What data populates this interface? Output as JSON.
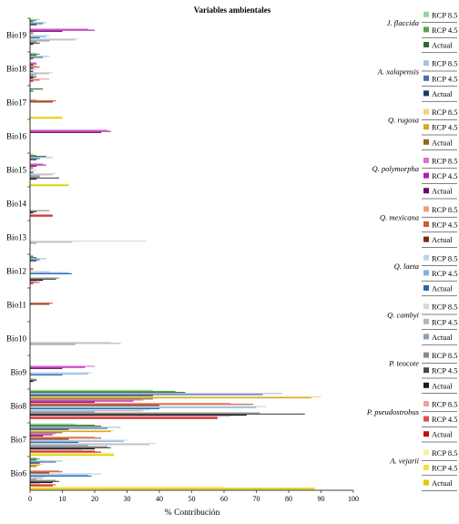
{
  "chart_data": {
    "type": "bar",
    "orientation": "horizontal",
    "title": "Variables ambientales",
    "xlabel": "% Contribución",
    "ylabel": "",
    "xlim": [
      0,
      100
    ],
    "xticks": [
      0,
      10,
      20,
      30,
      40,
      50,
      60,
      70,
      80,
      90,
      100
    ],
    "categories": [
      "Bio19",
      "Bio18",
      "Bio17",
      "Bio16",
      "Bio15",
      "Bio14",
      "Bio13",
      "Bio12",
      "Bio11",
      "Bio10",
      "Bio9",
      "Bio8",
      "Bio7",
      "Bio6"
    ],
    "grid": false,
    "legend_position": "right",
    "scenario_labels": [
      "RCP 8.5",
      "RCP 4.5",
      "Actual"
    ],
    "series": [
      {
        "species": "J. flaccida",
        "scenario": "RCP 8.5",
        "color": "#9ad39a",
        "values": [
          3,
          2,
          0,
          0,
          1,
          0,
          0,
          1,
          0,
          0,
          0,
          38,
          14,
          2
        ]
      },
      {
        "species": "J. flaccida",
        "scenario": "RCP 4.5",
        "color": "#5f9e4f",
        "values": [
          2,
          3,
          0,
          0,
          2,
          0,
          0,
          1,
          0,
          0,
          0,
          45,
          20,
          3
        ]
      },
      {
        "species": "J. flaccida",
        "scenario": "Actual",
        "color": "#2e6b2e",
        "values": [
          1,
          2,
          4,
          0,
          5,
          0,
          0,
          2,
          0,
          0,
          0,
          48,
          22,
          2
        ]
      },
      {
        "species": "A. xalapensis",
        "scenario": "RCP 8.5",
        "color": "#a8bfe0",
        "values": [
          5,
          6,
          1,
          0,
          7,
          0,
          0,
          5,
          0,
          0,
          0,
          78,
          28,
          10
        ]
      },
      {
        "species": "A. xalapensis",
        "scenario": "RCP 4.5",
        "color": "#4a6fa5",
        "values": [
          4,
          4,
          1,
          0,
          3,
          0,
          0,
          3,
          0,
          0,
          0,
          72,
          24,
          8
        ]
      },
      {
        "species": "A. xalapensis",
        "scenario": "Actual",
        "color": "#1f3b63",
        "values": [
          2,
          1,
          0,
          0,
          2,
          0,
          0,
          2,
          0,
          0,
          0,
          38,
          12,
          3
        ]
      },
      {
        "species": "Q. rugosa",
        "scenario": "RCP 8.5",
        "color": "#f5d27a",
        "values": [
          0,
          0,
          0,
          0,
          0,
          0,
          0,
          0,
          0,
          0,
          0,
          90,
          26,
          4
        ]
      },
      {
        "species": "Q. rugosa",
        "scenario": "RCP 4.5",
        "color": "#d4a62a",
        "values": [
          0,
          0,
          0,
          0,
          0,
          0,
          0,
          0,
          0,
          0,
          0,
          87,
          25,
          3
        ]
      },
      {
        "species": "Q. rugosa",
        "scenario": "Actual",
        "color": "#8a6a1a",
        "values": [
          0,
          0,
          0,
          0,
          0,
          0,
          0,
          0,
          0,
          0,
          0,
          38,
          10,
          2
        ]
      },
      {
        "species": "Q. polymorpha",
        "scenario": "RCP 8.5",
        "color": "#e070d0",
        "values": [
          18,
          2,
          0,
          24,
          4,
          0,
          0,
          0,
          0,
          0,
          20,
          35,
          8,
          0
        ]
      },
      {
        "species": "Q. polymorpha",
        "scenario": "RCP 4.5",
        "color": "#b020b0",
        "values": [
          20,
          2,
          0,
          25,
          5,
          0,
          0,
          0,
          0,
          0,
          17,
          32,
          7,
          0
        ]
      },
      {
        "species": "Q. polymorpha",
        "scenario": "Actual",
        "color": "#6a0a6a",
        "values": [
          10,
          1,
          0,
          22,
          2,
          0,
          0,
          0,
          0,
          0,
          10,
          20,
          4,
          0
        ]
      },
      {
        "species": "Q. mexicana",
        "scenario": "RCP 8.5",
        "color": "#f0a07a",
        "values": [
          1,
          2,
          2,
          0,
          1,
          0,
          0,
          1,
          0,
          0,
          0,
          62,
          20,
          9
        ]
      },
      {
        "species": "Q. mexicana",
        "scenario": "RCP 4.5",
        "color": "#d05a2a",
        "values": [
          1,
          3,
          8,
          0,
          1,
          0,
          0,
          1,
          7,
          0,
          0,
          69,
          22,
          10
        ]
      },
      {
        "species": "Q. mexicana",
        "scenario": "Actual",
        "color": "#7a2a10",
        "values": [
          0,
          1,
          7,
          0,
          0,
          0,
          0,
          0,
          6,
          0,
          0,
          40,
          12,
          6
        ]
      },
      {
        "species": "Q. laeta",
        "scenario": "RCP 8.5",
        "color": "#b8d4f0",
        "values": [
          6,
          2,
          0,
          0,
          2,
          0,
          0,
          6,
          0,
          0,
          19,
          73,
          30,
          22
        ]
      },
      {
        "species": "Q. laeta",
        "scenario": "RCP 4.5",
        "color": "#8ab0d8",
        "values": [
          5,
          1,
          0,
          0,
          1,
          0,
          0,
          12,
          0,
          0,
          18,
          70,
          29,
          18
        ]
      },
      {
        "species": "Q. laeta",
        "scenario": "Actual",
        "color": "#2a6ab0",
        "values": [
          3,
          1,
          0,
          0,
          1,
          0,
          0,
          13,
          0,
          0,
          10,
          40,
          15,
          19
        ]
      },
      {
        "species": "Q. cambyi",
        "scenario": "RCP 8.5",
        "color": "#d8d8d8",
        "values": [
          15,
          7,
          0,
          0,
          8,
          0,
          36,
          0,
          0,
          25,
          0,
          37,
          39,
          5
        ]
      },
      {
        "species": "Q. cambyi",
        "scenario": "RCP 4.5",
        "color": "#b4b4b4",
        "values": [
          14,
          6,
          0,
          0,
          7,
          0,
          13,
          0,
          0,
          28,
          0,
          35,
          37,
          4
        ]
      },
      {
        "species": "Q. cambyi",
        "scenario": "Actual",
        "color": "#8aa0b8",
        "values": [
          6,
          2,
          0,
          0,
          3,
          0,
          2,
          0,
          0,
          14,
          0,
          20,
          18,
          2
        ]
      },
      {
        "species": "P. teocote",
        "scenario": "RCP 8.5",
        "color": "#8a8a8a",
        "values": [
          2,
          1,
          0,
          0,
          3,
          6,
          0,
          9,
          0,
          0,
          2,
          71,
          24,
          8
        ]
      },
      {
        "species": "P. teocote",
        "scenario": "RCP 4.5",
        "color": "#4a4a4a",
        "values": [
          3,
          2,
          0,
          0,
          9,
          2,
          0,
          8,
          0,
          0,
          2,
          85,
          25,
          9
        ]
      },
      {
        "species": "P. teocote",
        "scenario": "Actual",
        "color": "#1a1a1a",
        "values": [
          1,
          1,
          0,
          0,
          2,
          1,
          0,
          4,
          0,
          0,
          1,
          67,
          20,
          7
        ]
      },
      {
        "species": "P. pseudostrobus",
        "scenario": "RCP 8.5",
        "color": "#f0a0a0",
        "values": [
          0,
          6,
          0,
          0,
          0,
          0,
          0,
          2,
          0,
          0,
          0,
          62,
          16,
          3
        ]
      },
      {
        "species": "P. pseudostrobus",
        "scenario": "RCP 4.5",
        "color": "#e05050",
        "values": [
          0,
          3,
          0,
          0,
          0,
          7,
          0,
          3,
          0,
          0,
          0,
          58,
          20,
          8
        ]
      },
      {
        "species": "P. pseudostrobus",
        "scenario": "Actual",
        "color": "#c01010",
        "values": [
          0,
          1,
          0,
          0,
          0,
          7,
          0,
          1,
          0,
          0,
          0,
          58,
          22,
          7
        ]
      },
      {
        "species": "A. vejarii",
        "scenario": "RCP 8.5",
        "color": "#f8f0a0",
        "values": [
          0,
          0,
          0,
          0,
          0,
          0,
          0,
          0,
          0,
          0,
          0,
          0,
          26,
          60
        ]
      },
      {
        "species": "A. vejarii",
        "scenario": "RCP 4.5",
        "color": "#f0e040",
        "values": [
          0,
          0,
          10,
          0,
          12,
          0,
          0,
          0,
          0,
          0,
          0,
          0,
          26,
          88
        ]
      },
      {
        "species": "A. vejarii",
        "scenario": "Actual",
        "color": "#e0c800",
        "values": [
          0,
          0,
          10,
          0,
          12,
          0,
          0,
          0,
          0,
          0,
          0,
          0,
          26,
          88
        ]
      }
    ],
    "legend_groups": [
      {
        "species": "J. flaccida",
        "colors": [
          "#9ad39a",
          "#5f9e4f",
          "#2e6b2e"
        ]
      },
      {
        "species": "A. xalapensis",
        "colors": [
          "#a8bfe0",
          "#4a6fa5",
          "#1f3b63"
        ]
      },
      {
        "species": "Q. rugosa",
        "colors": [
          "#f5d27a",
          "#d4a62a",
          "#8a6a1a"
        ]
      },
      {
        "species": "Q. polymorpha",
        "colors": [
          "#e070d0",
          "#b020b0",
          "#6a0a6a"
        ]
      },
      {
        "species": "Q. mexicana",
        "colors": [
          "#f0a07a",
          "#d05a2a",
          "#7a2a10"
        ]
      },
      {
        "species": "Q. laeta",
        "colors": [
          "#b8d4f0",
          "#8ab0d8",
          "#2a6ab0"
        ]
      },
      {
        "species": "Q. cambyi",
        "colors": [
          "#d8d8d8",
          "#b4b4b4",
          "#8aa0b8"
        ]
      },
      {
        "species": "P. teocote",
        "colors": [
          "#8a8a8a",
          "#4a4a4a",
          "#1a1a1a"
        ]
      },
      {
        "species": "P. pseudostrobus",
        "colors": [
          "#f0a0a0",
          "#e05050",
          "#c01010"
        ]
      },
      {
        "species": "A. vejarii",
        "colors": [
          "#f8f0a0",
          "#f0e040",
          "#e0c800"
        ]
      }
    ]
  }
}
